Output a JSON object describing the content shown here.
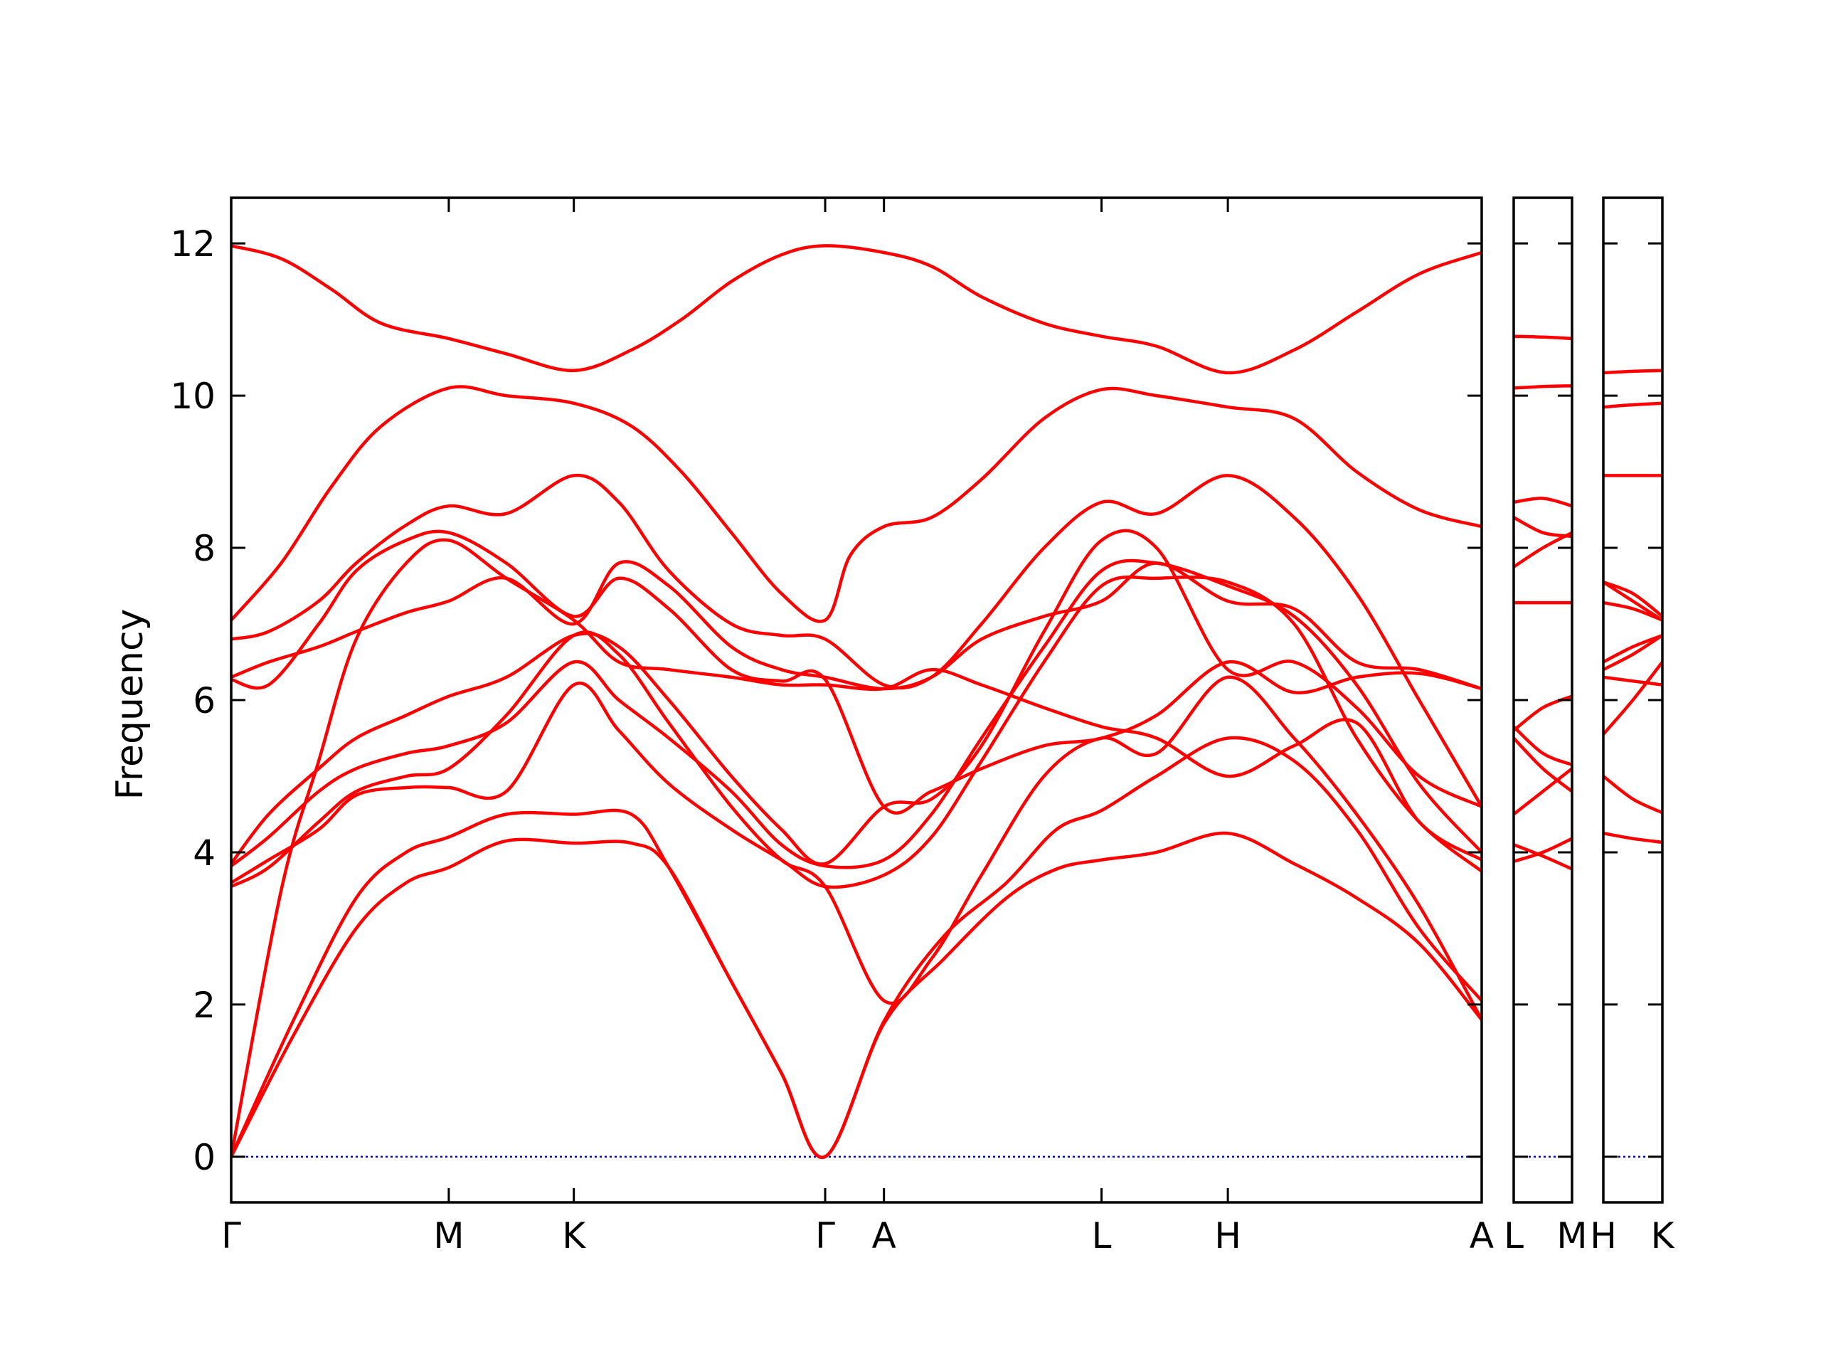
{
  "chart_data": {
    "type": "line",
    "ylabel": "Frequency",
    "ylim": [
      -0.6,
      12.6
    ],
    "yticks": [
      0,
      2,
      4,
      6,
      8,
      10,
      12
    ],
    "ytick_labels": [
      "0",
      "2",
      "4",
      "6",
      "8",
      "10",
      "12"
    ],
    "grid": false,
    "line_color": "#ff0000",
    "zero_line_color": "#0000cc",
    "panels": [
      {
        "x_range": [
          0,
          10.0
        ],
        "ticks": [
          {
            "label": "Γ",
            "x": 0.0
          },
          {
            "label": "M",
            "x": 1.74
          },
          {
            "label": "K",
            "x": 2.74
          },
          {
            "label": "Γ",
            "x": 4.75
          },
          {
            "label": "A",
            "x": 5.22
          },
          {
            "label": "L",
            "x": 6.96
          },
          {
            "label": "H",
            "x": 7.97
          },
          {
            "label": "A",
            "x": 10.0
          }
        ],
        "series": [
          {
            "name": "",
            "x": [
              0.0,
              0.5,
              1.0,
              1.4,
              1.74,
              2.2,
              2.74,
              3.2,
              3.5,
              4.0,
              4.4,
              4.75,
              5.22,
              5.7,
              6.2,
              6.6,
              6.96,
              7.4,
              7.97,
              8.5,
              9.0,
              9.5,
              10.0
            ],
            "values": [
              0.0,
              1.6,
              3.0,
              3.6,
              3.8,
              4.15,
              4.12,
              4.12,
              3.8,
              2.3,
              1.1,
              0.0,
              1.75,
              2.6,
              3.4,
              3.78,
              3.9,
              4.0,
              4.25,
              3.85,
              3.4,
              2.8,
              1.8
            ]
          },
          {
            "name": "",
            "x": [
              0.0,
              0.5,
              1.0,
              1.4,
              1.74,
              2.2,
              2.74,
              3.2,
              3.5,
              4.0,
              4.4,
              4.75,
              5.22,
              5.7,
              6.2,
              6.6,
              6.96,
              7.4,
              7.97,
              8.5,
              9.0,
              9.5,
              10.0
            ],
            "values": [
              0.0,
              1.8,
              3.4,
              4.0,
              4.2,
              4.5,
              4.5,
              4.5,
              3.8,
              2.3,
              1.1,
              0.0,
              1.78,
              2.9,
              3.6,
              4.3,
              4.55,
              5.0,
              5.5,
              5.2,
              4.3,
              3.0,
              2.05
            ]
          },
          {
            "name": "",
            "x": [
              0.0,
              0.4,
              0.7,
              1.0,
              1.4,
              1.74,
              2.2,
              2.74,
              3.1,
              3.5,
              4.0,
              4.4,
              4.75,
              5.22,
              5.6,
              6.0,
              6.5,
              6.96,
              7.4,
              7.97,
              8.5,
              9.0,
              9.5,
              10.0
            ],
            "values": [
              0.0,
              3.5,
              5.2,
              6.8,
              7.8,
              8.1,
              7.6,
              7.05,
              6.5,
              6.4,
              6.3,
              6.2,
              6.2,
              6.15,
              6.4,
              6.2,
              5.9,
              5.65,
              5.5,
              5.0,
              5.4,
              5.7,
              4.4,
              3.9
            ]
          },
          {
            "name": "",
            "x": [
              0.0,
              0.3,
              0.7,
              1.0,
              1.4,
              1.74,
              2.2,
              2.74,
              3.1,
              3.5,
              4.0,
              4.4,
              4.75,
              5.22,
              5.6,
              6.0,
              6.5,
              6.96,
              7.4,
              7.97,
              8.5,
              9.0,
              9.5,
              10.0
            ],
            "values": [
              3.55,
              3.8,
              4.4,
              4.8,
              5.0,
              5.1,
              5.8,
              6.85,
              6.6,
              5.7,
              4.6,
              3.9,
              3.55,
              2.05,
              2.6,
              3.7,
              5.0,
              5.5,
              5.3,
              6.3,
              5.5,
              4.5,
              3.3,
              1.8
            ]
          },
          {
            "name": "",
            "x": [
              0.0,
              0.3,
              0.7,
              1.0,
              1.4,
              1.74,
              2.2,
              2.74,
              3.1,
              3.5,
              4.0,
              4.4,
              4.75,
              5.22,
              5.6,
              6.0,
              6.5,
              6.96,
              7.4,
              7.97,
              8.5,
              9.0,
              9.5,
              10.0
            ],
            "values": [
              3.6,
              3.9,
              4.3,
              4.75,
              4.85,
              4.85,
              4.8,
              6.2,
              5.6,
              4.9,
              4.3,
              3.9,
              3.55,
              3.7,
              4.2,
              5.2,
              6.5,
              7.5,
              7.6,
              7.55,
              7.0,
              5.5,
              4.4,
              3.75
            ]
          },
          {
            "name": "",
            "x": [
              0.0,
              0.3,
              0.7,
              1.0,
              1.4,
              1.74,
              2.2,
              2.74,
              3.1,
              3.5,
              4.0,
              4.4,
              4.75,
              5.22,
              5.6,
              6.0,
              6.5,
              6.96,
              7.4,
              7.97,
              8.5,
              9.0,
              9.5,
              10.0
            ],
            "values": [
              3.82,
              4.2,
              4.8,
              5.1,
              5.3,
              5.4,
              5.7,
              6.5,
              6.0,
              5.5,
              4.8,
              4.1,
              3.82,
              3.9,
              4.5,
              5.5,
              6.7,
              7.7,
              7.8,
              7.5,
              7.1,
              6.2,
              4.9,
              4.0
            ]
          },
          {
            "name": "",
            "x": [
              0.0,
              0.3,
              0.7,
              1.0,
              1.4,
              1.74,
              2.2,
              2.74,
              3.1,
              3.5,
              4.0,
              4.4,
              4.75,
              5.22,
              5.6,
              6.0,
              6.5,
              6.96,
              7.4,
              7.97,
              8.5,
              9.0,
              9.5,
              10.0
            ],
            "values": [
              3.85,
              4.5,
              5.1,
              5.5,
              5.8,
              6.05,
              6.3,
              6.85,
              6.7,
              6.0,
              5.0,
              4.3,
              3.85,
              4.6,
              4.7,
              5.4,
              6.9,
              8.1,
              8.0,
              6.4,
              6.5,
              5.9,
              5.0,
              4.6
            ]
          },
          {
            "name": "",
            "x": [
              0.0,
              0.3,
              0.7,
              1.0,
              1.4,
              1.74,
              2.2,
              2.74,
              3.1,
              3.5,
              4.0,
              4.4,
              4.75,
              5.22,
              5.6,
              6.0,
              6.5,
              6.96,
              7.4,
              7.97,
              8.5,
              9.0,
              9.5,
              10.0
            ],
            "values": [
              6.27,
              6.2,
              7.0,
              7.7,
              8.1,
              8.2,
              7.8,
              7.1,
              7.6,
              7.2,
              6.4,
              6.25,
              6.27,
              4.6,
              4.8,
              5.1,
              5.4,
              5.5,
              5.8,
              6.5,
              6.1,
              6.3,
              6.35,
              6.15
            ]
          },
          {
            "name": "",
            "x": [
              0.0,
              0.3,
              0.7,
              1.0,
              1.4,
              1.74,
              2.2,
              2.74,
              3.1,
              3.5,
              4.0,
              4.4,
              4.75,
              5.22,
              5.6,
              6.0,
              6.5,
              6.96,
              7.4,
              7.97,
              8.5,
              9.0,
              9.5,
              10.0
            ],
            "values": [
              6.3,
              6.5,
              6.7,
              6.9,
              7.15,
              7.3,
              7.6,
              7.0,
              7.8,
              7.5,
              6.7,
              6.4,
              6.3,
              6.15,
              6.3,
              6.8,
              7.1,
              7.3,
              7.8,
              7.3,
              7.2,
              6.5,
              6.4,
              6.15
            ]
          },
          {
            "name": "",
            "x": [
              0.0,
              0.3,
              0.7,
              1.0,
              1.4,
              1.74,
              2.2,
              2.74,
              3.1,
              3.5,
              4.0,
              4.4,
              4.75,
              5.22,
              5.6,
              6.0,
              6.5,
              6.96,
              7.4,
              7.97,
              8.5,
              9.0,
              9.5,
              10.0
            ],
            "values": [
              6.8,
              6.9,
              7.3,
              7.8,
              8.3,
              8.55,
              8.45,
              8.95,
              8.6,
              7.7,
              7.0,
              6.85,
              6.8,
              6.2,
              6.3,
              7.0,
              8.0,
              8.6,
              8.45,
              8.95,
              8.4,
              7.4,
              6.0,
              4.6
            ]
          },
          {
            "name": "",
            "x": [
              0.0,
              0.4,
              0.8,
              1.2,
              1.74,
              2.2,
              2.74,
              3.2,
              3.6,
              4.0,
              4.4,
              4.75,
              4.95,
              5.22,
              5.6,
              6.0,
              6.5,
              6.96,
              7.4,
              7.97,
              8.5,
              9.0,
              9.5,
              10.0
            ],
            "values": [
              7.05,
              7.8,
              8.8,
              9.6,
              10.1,
              10.0,
              9.9,
              9.6,
              9.0,
              8.2,
              7.4,
              7.05,
              7.9,
              8.28,
              8.4,
              8.9,
              9.7,
              10.08,
              10.0,
              9.85,
              9.7,
              9.0,
              8.5,
              8.28
            ]
          },
          {
            "name": "",
            "x": [
              0.0,
              0.4,
              0.8,
              1.2,
              1.74,
              2.2,
              2.74,
              3.2,
              3.6,
              4.0,
              4.4,
              4.75,
              5.22,
              5.6,
              6.0,
              6.5,
              6.96,
              7.4,
              7.97,
              8.5,
              9.0,
              9.5,
              10.0
            ],
            "values": [
              11.97,
              11.8,
              11.4,
              10.95,
              10.75,
              10.55,
              10.33,
              10.6,
              11.0,
              11.5,
              11.85,
              11.97,
              11.88,
              11.7,
              11.3,
              10.95,
              10.78,
              10.65,
              10.3,
              10.6,
              11.1,
              11.6,
              11.88
            ]
          }
        ]
      },
      {
        "x_range": [
          0,
          1.0
        ],
        "ticks": [
          {
            "label": "L",
            "x": 0.0
          },
          {
            "label": "M",
            "x": 1.0
          }
        ],
        "series": [
          {
            "name": "",
            "x": [
              0,
              0.5,
              1
            ],
            "values": [
              3.88,
              4.0,
              4.18
            ]
          },
          {
            "name": "",
            "x": [
              0,
              0.5,
              1
            ],
            "values": [
              4.1,
              3.95,
              3.78
            ]
          },
          {
            "name": "",
            "x": [
              0,
              0.5,
              1
            ],
            "values": [
              4.5,
              4.8,
              5.1
            ]
          },
          {
            "name": "",
            "x": [
              0,
              0.5,
              1
            ],
            "values": [
              5.5,
              5.1,
              4.8
            ]
          },
          {
            "name": "",
            "x": [
              0,
              0.5,
              1
            ],
            "values": [
              5.6,
              5.9,
              6.05
            ]
          },
          {
            "name": "",
            "x": [
              0,
              0.5,
              1
            ],
            "values": [
              5.65,
              5.3,
              5.15
            ]
          },
          {
            "name": "",
            "x": [
              0,
              0.5,
              1
            ],
            "values": [
              7.28,
              7.28,
              7.28
            ]
          },
          {
            "name": "",
            "x": [
              0,
              0.5,
              1
            ],
            "values": [
              7.75,
              8.0,
              8.2
            ]
          },
          {
            "name": "",
            "x": [
              0,
              0.5,
              1
            ],
            "values": [
              8.4,
              8.2,
              8.15
            ]
          },
          {
            "name": "",
            "x": [
              0,
              0.5,
              1
            ],
            "values": [
              8.6,
              8.65,
              8.55
            ]
          },
          {
            "name": "",
            "x": [
              0,
              0.5,
              1
            ],
            "values": [
              10.1,
              10.12,
              10.13
            ]
          },
          {
            "name": "",
            "x": [
              0,
              0.5,
              1
            ],
            "values": [
              10.78,
              10.77,
              10.75
            ]
          }
        ]
      },
      {
        "x_range": [
          0,
          1.0
        ],
        "ticks": [
          {
            "label": "H",
            "x": 0.0
          },
          {
            "label": "K",
            "x": 1.0
          }
        ],
        "series": [
          {
            "name": "",
            "x": [
              0,
              0.5,
              1
            ],
            "values": [
              4.25,
              4.18,
              4.13
            ]
          },
          {
            "name": "",
            "x": [
              0,
              0.5,
              1
            ],
            "values": [
              5.0,
              4.7,
              4.52
            ]
          },
          {
            "name": "",
            "x": [
              0,
              0.5,
              1
            ],
            "values": [
              5.55,
              6.0,
              6.5
            ]
          },
          {
            "name": "",
            "x": [
              0,
              0.5,
              1
            ],
            "values": [
              6.3,
              6.25,
              6.2
            ]
          },
          {
            "name": "",
            "x": [
              0,
              0.5,
              1
            ],
            "values": [
              6.4,
              6.6,
              6.85
            ]
          },
          {
            "name": "",
            "x": [
              0,
              0.5,
              1
            ],
            "values": [
              6.5,
              6.7,
              6.85
            ]
          },
          {
            "name": "",
            "x": [
              0,
              0.5,
              1
            ],
            "values": [
              7.28,
              7.2,
              7.05
            ]
          },
          {
            "name": "",
            "x": [
              0,
              0.5,
              1
            ],
            "values": [
              7.55,
              7.3,
              7.05
            ]
          },
          {
            "name": "",
            "x": [
              0,
              0.5,
              1
            ],
            "values": [
              7.55,
              7.4,
              7.1
            ]
          },
          {
            "name": "",
            "x": [
              0,
              0.5,
              1
            ],
            "values": [
              8.95,
              8.95,
              8.95
            ]
          },
          {
            "name": "",
            "x": [
              0,
              0.5,
              1
            ],
            "values": [
              9.85,
              9.88,
              9.9
            ]
          },
          {
            "name": "",
            "x": [
              0,
              0.5,
              1
            ],
            "values": [
              10.3,
              10.32,
              10.33
            ]
          }
        ]
      }
    ]
  }
}
